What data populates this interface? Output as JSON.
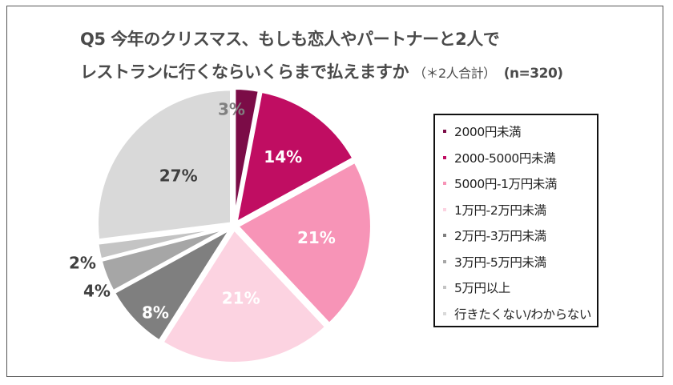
{
  "chart_data": {
    "type": "pie",
    "title_line1": "Q5 今年のクリスマス、もしも恋人やパートナーと2人で",
    "title_line2": "レストランに行くならいくらまで払えますか",
    "title_note": "（＊2人合計）",
    "title_n": "(n=320)",
    "legend_position": "right",
    "slices": [
      {
        "label": "2000円未満",
        "value": 3,
        "data_label": "3%",
        "color": "#7b0c47",
        "label_color": "#808080"
      },
      {
        "label": "2000-5000円未満",
        "value": 14,
        "data_label": "14%",
        "color": "#c00d62",
        "label_color": "#ffffff"
      },
      {
        "label": "5000円-1万円未満",
        "value": 21,
        "data_label": "21%",
        "color": "#f794b7",
        "label_color": "#ffffff"
      },
      {
        "label": "1万円-2万円未満",
        "value": 21,
        "data_label": "21%",
        "color": "#fcd3e1",
        "label_color": "#ffffff"
      },
      {
        "label": "2万円-3万円未満",
        "value": 8,
        "data_label": "8%",
        "color": "#7f7f7f",
        "label_color": "#ffffff"
      },
      {
        "label": "3万円-5万円未満",
        "value": 4,
        "data_label": "4%",
        "color": "#a6a6a6",
        "label_color": "#404040"
      },
      {
        "label": "5万円以上",
        "value": 2,
        "data_label": "2%",
        "color": "#c4c4c4",
        "label_color": "#404040"
      },
      {
        "label": "行きたくない/わからない",
        "value": 27,
        "data_label": "27%",
        "color": "#d9d9d9",
        "label_color": "#404040"
      }
    ]
  }
}
